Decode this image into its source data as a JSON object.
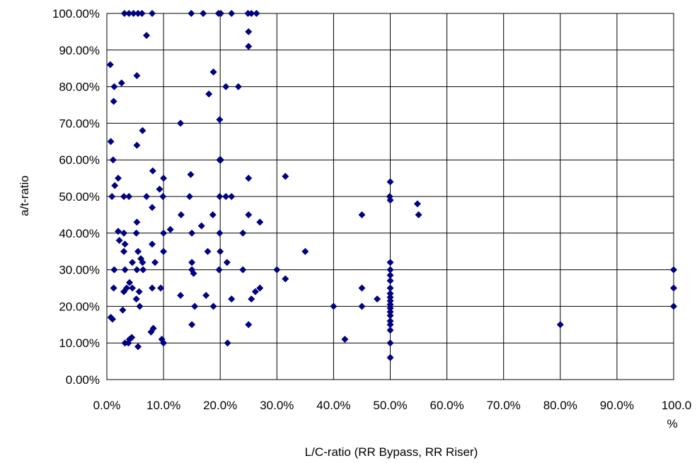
{
  "chart_data": {
    "type": "scatter",
    "title": "",
    "xlabel": "L/C-ratio (RR Bypass, RR Riser)",
    "ylabel": "a/t-ratio",
    "xlim": [
      0,
      1
    ],
    "ylim": [
      0,
      1
    ],
    "x_ticks": [
      0,
      0.1,
      0.2,
      0.3,
      0.4,
      0.5,
      0.6,
      0.7,
      0.8,
      0.9,
      1.0
    ],
    "x_tick_labels": [
      "0.0%",
      "10.0%",
      "20.0%",
      "30.0%",
      "40.0%",
      "50.0%",
      "60.0%",
      "70.0%",
      "80.0%",
      "90.0%",
      "100.0"
    ],
    "x_tick_label_overflow": "%",
    "y_ticks": [
      0,
      0.1,
      0.2,
      0.3,
      0.4,
      0.5,
      0.6,
      0.7,
      0.8,
      0.9,
      1.0
    ],
    "y_tick_labels": [
      "0.00%",
      "10.00%",
      "20.00%",
      "30.00%",
      "40.00%",
      "50.00%",
      "60.00%",
      "70.00%",
      "80.00%",
      "90.00%",
      "100.00%"
    ],
    "grid": true,
    "legend": "none",
    "marker": "diamond",
    "marker_color": "#000080",
    "points": [
      [
        0.031,
        1.0
      ],
      [
        0.039,
        1.0
      ],
      [
        0.047,
        1.0
      ],
      [
        0.055,
        1.0
      ],
      [
        0.062,
        1.0
      ],
      [
        0.08,
        1.0
      ],
      [
        0.149,
        1.0
      ],
      [
        0.17,
        1.0
      ],
      [
        0.197,
        1.0
      ],
      [
        0.201,
        1.0
      ],
      [
        0.22,
        1.0
      ],
      [
        0.249,
        1.0
      ],
      [
        0.255,
        1.0
      ],
      [
        0.264,
        1.0
      ],
      [
        0.25,
        0.95
      ],
      [
        0.07,
        0.94
      ],
      [
        0.25,
        0.91
      ],
      [
        0.006,
        0.86
      ],
      [
        0.188,
        0.84
      ],
      [
        0.053,
        0.83
      ],
      [
        0.026,
        0.81
      ],
      [
        0.013,
        0.8
      ],
      [
        0.21,
        0.8
      ],
      [
        0.232,
        0.8
      ],
      [
        0.18,
        0.78
      ],
      [
        0.012,
        0.76
      ],
      [
        0.199,
        0.71
      ],
      [
        0.13,
        0.7
      ],
      [
        0.063,
        0.68
      ],
      [
        0.007,
        0.65
      ],
      [
        0.053,
        0.64
      ],
      [
        0.011,
        0.6
      ],
      [
        0.199,
        0.6
      ],
      [
        0.201,
        0.6
      ],
      [
        0.081,
        0.57
      ],
      [
        0.148,
        0.56
      ],
      [
        0.02,
        0.55
      ],
      [
        0.1,
        0.55
      ],
      [
        0.25,
        0.55
      ],
      [
        0.315,
        0.555
      ],
      [
        0.014,
        0.53
      ],
      [
        0.093,
        0.52
      ],
      [
        0.009,
        0.5
      ],
      [
        0.03,
        0.5
      ],
      [
        0.039,
        0.5
      ],
      [
        0.07,
        0.5
      ],
      [
        0.099,
        0.5
      ],
      [
        0.146,
        0.5
      ],
      [
        0.199,
        0.5
      ],
      [
        0.21,
        0.5
      ],
      [
        0.22,
        0.5
      ],
      [
        0.499,
        0.5
      ],
      [
        0.5,
        0.54
      ],
      [
        0.5,
        0.49
      ],
      [
        0.548,
        0.48
      ],
      [
        0.08,
        0.47
      ],
      [
        0.187,
        0.45
      ],
      [
        0.131,
        0.45
      ],
      [
        0.25,
        0.45
      ],
      [
        0.45,
        0.45
      ],
      [
        0.55,
        0.45
      ],
      [
        0.053,
        0.43
      ],
      [
        0.27,
        0.43
      ],
      [
        0.167,
        0.42
      ],
      [
        0.112,
        0.41
      ],
      [
        0.02,
        0.405
      ],
      [
        0.03,
        0.4
      ],
      [
        0.052,
        0.4
      ],
      [
        0.1,
        0.4
      ],
      [
        0.15,
        0.4
      ],
      [
        0.199,
        0.4
      ],
      [
        0.24,
        0.4
      ],
      [
        0.022,
        0.38
      ],
      [
        0.032,
        0.37
      ],
      [
        0.08,
        0.37
      ],
      [
        0.03,
        0.35
      ],
      [
        0.055,
        0.35
      ],
      [
        0.1,
        0.35
      ],
      [
        0.178,
        0.35
      ],
      [
        0.2,
        0.35
      ],
      [
        0.35,
        0.35
      ],
      [
        0.06,
        0.33
      ],
      [
        0.045,
        0.32
      ],
      [
        0.063,
        0.32
      ],
      [
        0.085,
        0.32
      ],
      [
        0.15,
        0.32
      ],
      [
        0.212,
        0.32
      ],
      [
        0.5,
        0.32
      ],
      [
        0.013,
        0.3
      ],
      [
        0.032,
        0.3
      ],
      [
        0.053,
        0.3
      ],
      [
        0.064,
        0.3
      ],
      [
        0.15,
        0.3
      ],
      [
        0.198,
        0.3
      ],
      [
        0.24,
        0.3
      ],
      [
        0.3,
        0.3
      ],
      [
        0.5,
        0.3
      ],
      [
        1.0,
        0.3
      ],
      [
        0.153,
        0.29
      ],
      [
        0.5,
        0.285
      ],
      [
        0.315,
        0.275
      ],
      [
        0.5,
        0.27
      ],
      [
        0.04,
        0.265
      ],
      [
        0.012,
        0.25
      ],
      [
        0.035,
        0.25
      ],
      [
        0.045,
        0.25
      ],
      [
        0.08,
        0.25
      ],
      [
        0.095,
        0.25
      ],
      [
        0.27,
        0.25
      ],
      [
        0.45,
        0.25
      ],
      [
        0.5,
        0.25
      ],
      [
        1.0,
        0.25
      ],
      [
        0.03,
        0.24
      ],
      [
        0.057,
        0.24
      ],
      [
        0.262,
        0.24
      ],
      [
        0.5,
        0.235
      ],
      [
        0.13,
        0.23
      ],
      [
        0.175,
        0.23
      ],
      [
        0.5,
        0.225
      ],
      [
        0.052,
        0.22
      ],
      [
        0.22,
        0.22
      ],
      [
        0.255,
        0.22
      ],
      [
        0.477,
        0.22
      ],
      [
        0.5,
        0.215
      ],
      [
        0.5,
        0.205
      ],
      [
        0.058,
        0.2
      ],
      [
        0.155,
        0.2
      ],
      [
        0.188,
        0.2
      ],
      [
        0.4,
        0.2
      ],
      [
        0.45,
        0.2
      ],
      [
        0.5,
        0.195
      ],
      [
        1.0,
        0.2
      ],
      [
        0.028,
        0.19
      ],
      [
        0.5,
        0.185
      ],
      [
        0.5,
        0.175
      ],
      [
        0.007,
        0.17
      ],
      [
        0.01,
        0.165
      ],
      [
        0.5,
        0.16
      ],
      [
        0.15,
        0.15
      ],
      [
        0.25,
        0.15
      ],
      [
        0.5,
        0.15
      ],
      [
        0.8,
        0.15
      ],
      [
        0.082,
        0.14
      ],
      [
        0.5,
        0.135
      ],
      [
        0.078,
        0.13
      ],
      [
        0.044,
        0.115
      ],
      [
        0.097,
        0.11
      ],
      [
        0.42,
        0.11
      ],
      [
        0.04,
        0.11
      ],
      [
        0.032,
        0.1
      ],
      [
        0.038,
        0.1
      ],
      [
        0.1,
        0.1
      ],
      [
        0.213,
        0.1
      ],
      [
        0.5,
        0.1
      ],
      [
        0.055,
        0.09
      ],
      [
        0.5,
        0.06
      ]
    ]
  }
}
